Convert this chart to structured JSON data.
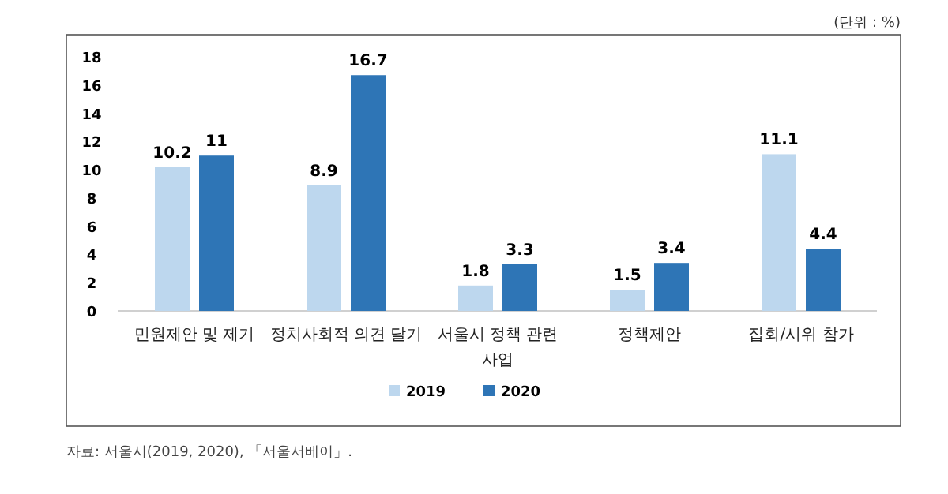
{
  "chart_data": {
    "type": "bar",
    "categories": [
      "민원제안 및 제기",
      "정치사회적 의견 달기",
      "서울시 정책 관련 사업",
      "정책제안",
      "집회/시위 참가"
    ],
    "series": [
      {
        "name": "2019",
        "color": "#bdd7ee",
        "values": [
          10.2,
          8.9,
          1.8,
          1.5,
          11.1
        ]
      },
      {
        "name": "2020",
        "color": "#2e75b6",
        "values": [
          11,
          16.7,
          3.3,
          3.4,
          4.4
        ]
      }
    ],
    "ylim": [
      0,
      18
    ],
    "yticks": [
      0,
      2,
      4,
      6,
      8,
      10,
      12,
      14,
      16,
      18
    ],
    "data_labels": true,
    "legend": "bottom",
    "grid": false,
    "annotations": [
      "(단위 : %)",
      "자료: 서울시(2019, 2020), 「서울서베이」."
    ]
  }
}
